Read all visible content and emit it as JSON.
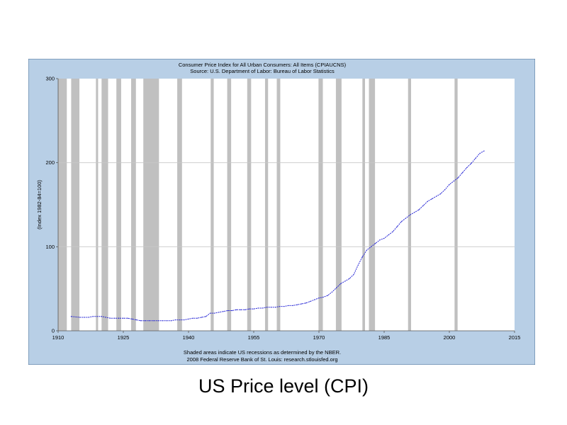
{
  "slide": {
    "caption": "US Price level (CPI)"
  },
  "chart_data": {
    "type": "line",
    "title": "Consumer Price Index for All Urban Consumers: All Items (CPIAUCNS)",
    "subtitle": "Source: U.S. Department of Labor: Bureau of Labor Statistics",
    "xlabel": "",
    "ylabel": "(Index 1982-84=100)",
    "xlim": [
      1910,
      2015
    ],
    "ylim": [
      0,
      300
    ],
    "x_ticks": [
      1910,
      1925,
      1940,
      1955,
      1970,
      1985,
      2000,
      2015
    ],
    "x_tick_labels": [
      "1910",
      "1925",
      "1940",
      "1955",
      "1970",
      "1985",
      "2000",
      "2015"
    ],
    "y_ticks": [
      0,
      100,
      200,
      300
    ],
    "y_tick_labels": [
      "0",
      "100",
      "200",
      "300"
    ],
    "grid": "horizontal",
    "footnote_1": "Shaded areas indicate US recessions as determined by the NBER.",
    "footnote_2": "2008 Federal Reserve Bank of St. Louis: research.stlouisfed.org",
    "colors": {
      "frame_background": "#b8cfe6",
      "plot_background": "#ffffff",
      "recession_shading": "#c0c0c0",
      "series_line": "#2b2bd6",
      "grid_line": "#c8c8c8"
    },
    "recessions": [
      [
        1910.0,
        1912.0
      ],
      [
        1913.0,
        1914.9
      ],
      [
        1918.7,
        1919.2
      ],
      [
        1920.0,
        1921.5
      ],
      [
        1923.4,
        1924.5
      ],
      [
        1926.8,
        1927.9
      ],
      [
        1929.6,
        1933.2
      ],
      [
        1937.4,
        1938.5
      ],
      [
        1945.1,
        1945.8
      ],
      [
        1948.9,
        1949.8
      ],
      [
        1953.5,
        1954.4
      ],
      [
        1957.6,
        1958.3
      ],
      [
        1960.3,
        1961.1
      ],
      [
        1969.9,
        1970.9
      ],
      [
        1973.9,
        1975.2
      ],
      [
        1980.0,
        1980.6
      ],
      [
        1981.5,
        1982.9
      ],
      [
        1990.5,
        1991.2
      ],
      [
        2001.2,
        2001.9
      ]
    ],
    "series": [
      {
        "values_x": [
          1913,
          1915,
          1916,
          1917,
          1918,
          1919,
          1920,
          1921,
          1922,
          1923,
          1924,
          1925,
          1926,
          1927,
          1928,
          1929,
          1930,
          1931,
          1932,
          1933,
          1934,
          1935,
          1936,
          1937,
          1938,
          1939,
          1940,
          1941,
          1942,
          1943,
          1944,
          1945,
          1946,
          1947,
          1948,
          1949,
          1950,
          1951,
          1952,
          1953,
          1954,
          1955,
          1956,
          1957,
          1958,
          1959,
          1960,
          1961,
          1962,
          1963,
          1964,
          1965,
          1966,
          1967,
          1968,
          1969,
          1970,
          1971,
          1972,
          1973,
          1974,
          1975,
          1976,
          1977,
          1978,
          1979,
          1980,
          1981,
          1982,
          1983,
          1984,
          1985,
          1986,
          1987,
          1988,
          1989,
          1990,
          1991,
          1992,
          1993,
          1994,
          1995,
          1996,
          1997,
          1998,
          1999,
          2000,
          2001,
          2002,
          2003,
          2004,
          2005,
          2006,
          2007,
          2008
        ],
        "values": [
          17,
          16,
          16,
          16,
          17,
          17,
          17,
          16,
          15,
          15,
          15,
          15,
          15,
          14,
          13,
          12,
          12,
          12,
          12,
          12,
          12,
          12,
          12,
          13,
          13,
          13,
          14,
          15,
          15,
          16,
          17,
          21,
          21,
          22,
          23,
          24,
          24,
          25,
          25,
          25,
          26,
          26,
          27,
          27,
          28,
          28,
          28,
          29,
          29,
          30,
          30,
          31,
          32,
          33,
          35,
          37,
          39,
          40,
          42,
          46,
          51,
          56,
          59,
          62,
          67,
          78,
          88,
          96,
          100,
          104,
          108,
          110,
          114,
          118,
          124,
          130,
          134,
          138,
          141,
          144,
          149,
          154,
          157,
          160,
          163,
          168,
          174,
          178,
          182,
          188,
          194,
          199,
          205,
          211,
          214
        ]
      }
    ]
  }
}
